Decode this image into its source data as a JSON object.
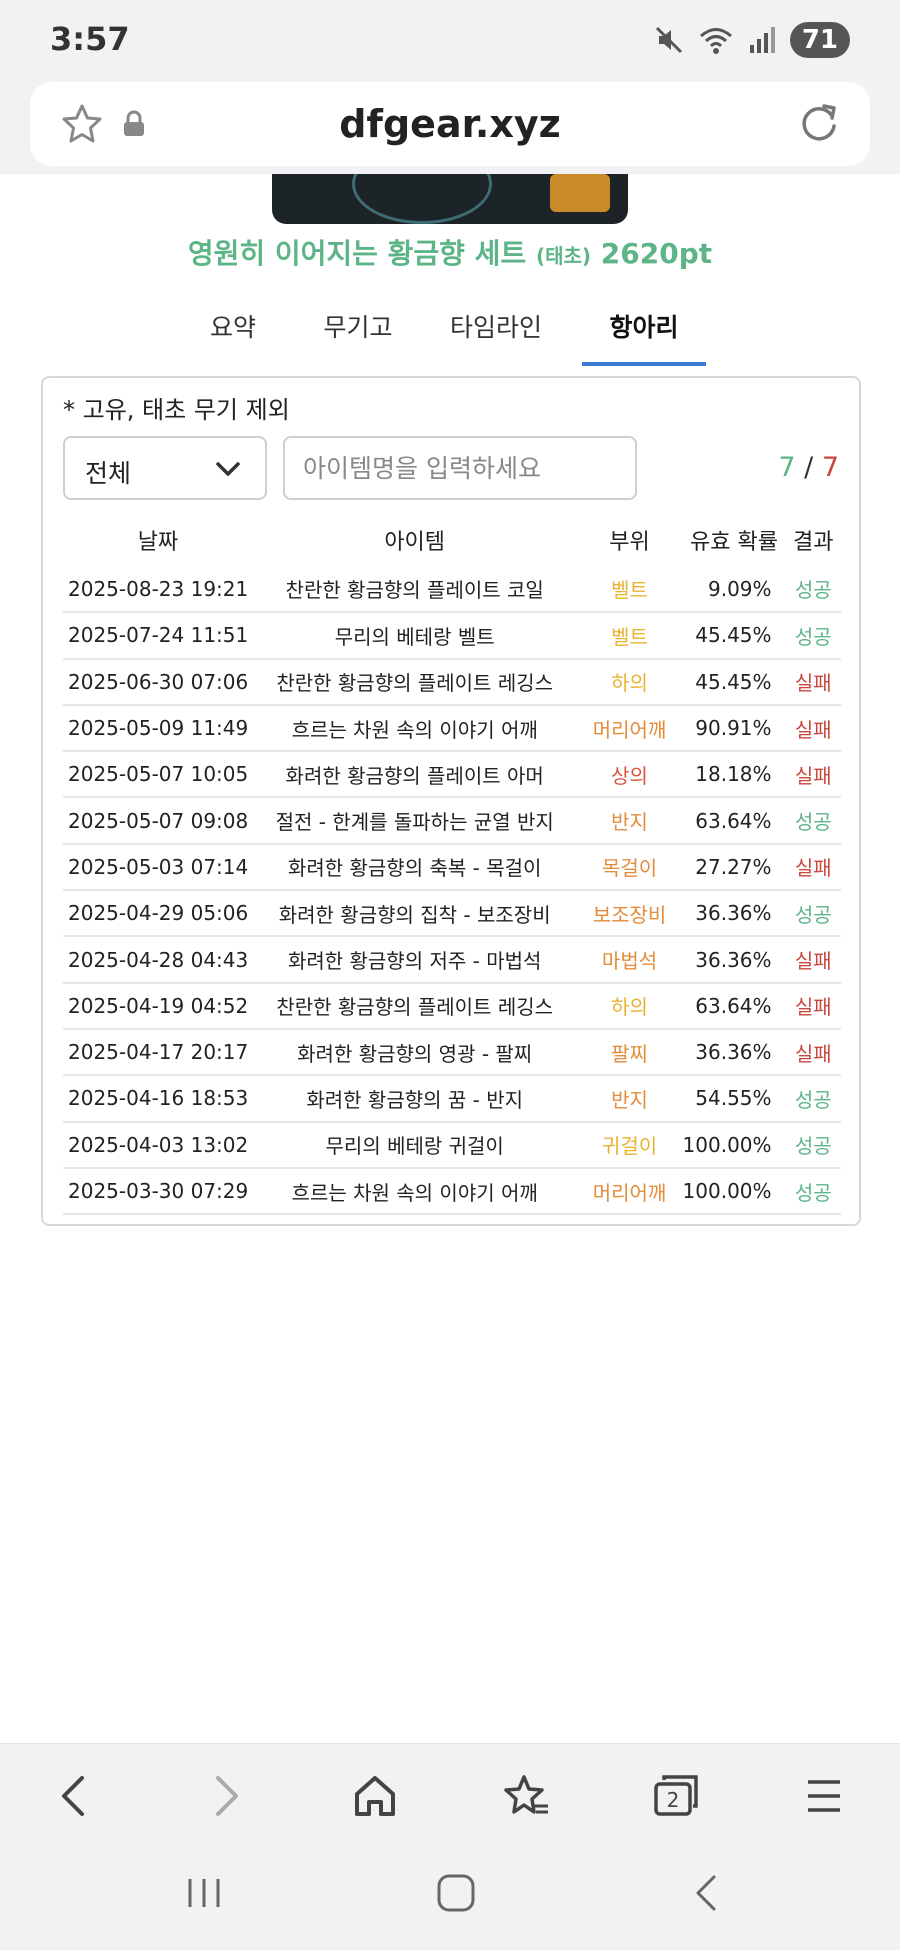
{
  "status": {
    "time": "3:57",
    "battery": "71"
  },
  "browser": {
    "url": "dfgear.xyz"
  },
  "banner": {
    "title": "영원히 이어지는 황금향 세트",
    "tag": "(태초)",
    "points": "2620pt"
  },
  "tabs": [
    {
      "label": "요약",
      "active": false
    },
    {
      "label": "무기고",
      "active": false
    },
    {
      "label": "타임라인",
      "active": false
    },
    {
      "label": "항아리",
      "active": true
    }
  ],
  "card": {
    "note": "* 고유, 태초 무기 제외",
    "filter": {
      "selected": "전체"
    },
    "search": {
      "placeholder": "아이템명을 입력하세요"
    },
    "counter": {
      "success": "7",
      "separator": "/",
      "fail": "7"
    },
    "headers": {
      "date": "날짜",
      "item": "아이템",
      "part": "부위",
      "prob": "유효 확률",
      "result": "결과"
    },
    "rows": [
      {
        "date": "2025-08-23 19:21",
        "item": "찬란한 황금향의 플레이트 코일",
        "part": "벨트",
        "prob": "9.09%",
        "result": "성공"
      },
      {
        "date": "2025-07-24 11:51",
        "item": "무리의 베테랑 벨트",
        "part": "벨트",
        "prob": "45.45%",
        "result": "성공"
      },
      {
        "date": "2025-06-30 07:06",
        "item": "찬란한 황금향의 플레이트 레깅스",
        "part": "하의",
        "prob": "45.45%",
        "result": "실패"
      },
      {
        "date": "2025-05-09 11:49",
        "item": "흐르는 차원 속의 이야기 어깨",
        "part": "머리어깨",
        "prob": "90.91%",
        "result": "실패"
      },
      {
        "date": "2025-05-07 10:05",
        "item": "화려한 황금향의 플레이트 아머",
        "part": "상의",
        "prob": "18.18%",
        "result": "실패"
      },
      {
        "date": "2025-05-07 09:08",
        "item": "절전 - 한계를 돌파하는 균열 반지",
        "part": "반지",
        "prob": "63.64%",
        "result": "성공"
      },
      {
        "date": "2025-05-03 07:14",
        "item": "화려한 황금향의 축복 - 목걸이",
        "part": "목걸이",
        "prob": "27.27%",
        "result": "실패"
      },
      {
        "date": "2025-04-29 05:06",
        "item": "화려한 황금향의 집착 - 보조장비",
        "part": "보조장비",
        "prob": "36.36%",
        "result": "성공"
      },
      {
        "date": "2025-04-28 04:43",
        "item": "화려한 황금향의 저주 - 마법석",
        "part": "마법석",
        "prob": "36.36%",
        "result": "실패"
      },
      {
        "date": "2025-04-19 04:52",
        "item": "찬란한 황금향의 플레이트 레깅스",
        "part": "하의",
        "prob": "63.64%",
        "result": "실패"
      },
      {
        "date": "2025-04-17 20:17",
        "item": "화려한 황금향의 영광 - 팔찌",
        "part": "팔찌",
        "prob": "36.36%",
        "result": "실패"
      },
      {
        "date": "2025-04-16 18:53",
        "item": "화려한 황금향의 꿈 - 반지",
        "part": "반지",
        "prob": "54.55%",
        "result": "성공"
      },
      {
        "date": "2025-04-03 13:02",
        "item": "무리의 베테랑 귀걸이",
        "part": "귀걸이",
        "prob": "100.00%",
        "result": "성공"
      },
      {
        "date": "2025-03-30 07:29",
        "item": "흐르는 차원 속의 이야기 어깨",
        "part": "머리어깨",
        "prob": "100.00%",
        "result": "성공"
      }
    ]
  },
  "bottom_nav": {
    "tab_count": "2"
  },
  "colors": {
    "success": "#5db587",
    "fail": "#c9463d",
    "accent": "#3a7bd5",
    "part_yellow": "#e8b32f",
    "part_orange": "#e38c3a",
    "part_red": "#d9523e"
  },
  "icons": [
    "mute-icon",
    "wifi-icon",
    "signal-icon",
    "star-icon",
    "lock-icon",
    "reload-icon",
    "chevron-down-icon",
    "back-icon",
    "forward-icon",
    "home-icon",
    "bookmarks-icon",
    "tabs-icon",
    "menu-icon",
    "recent-apps-icon",
    "system-home-icon",
    "system-back-icon"
  ]
}
